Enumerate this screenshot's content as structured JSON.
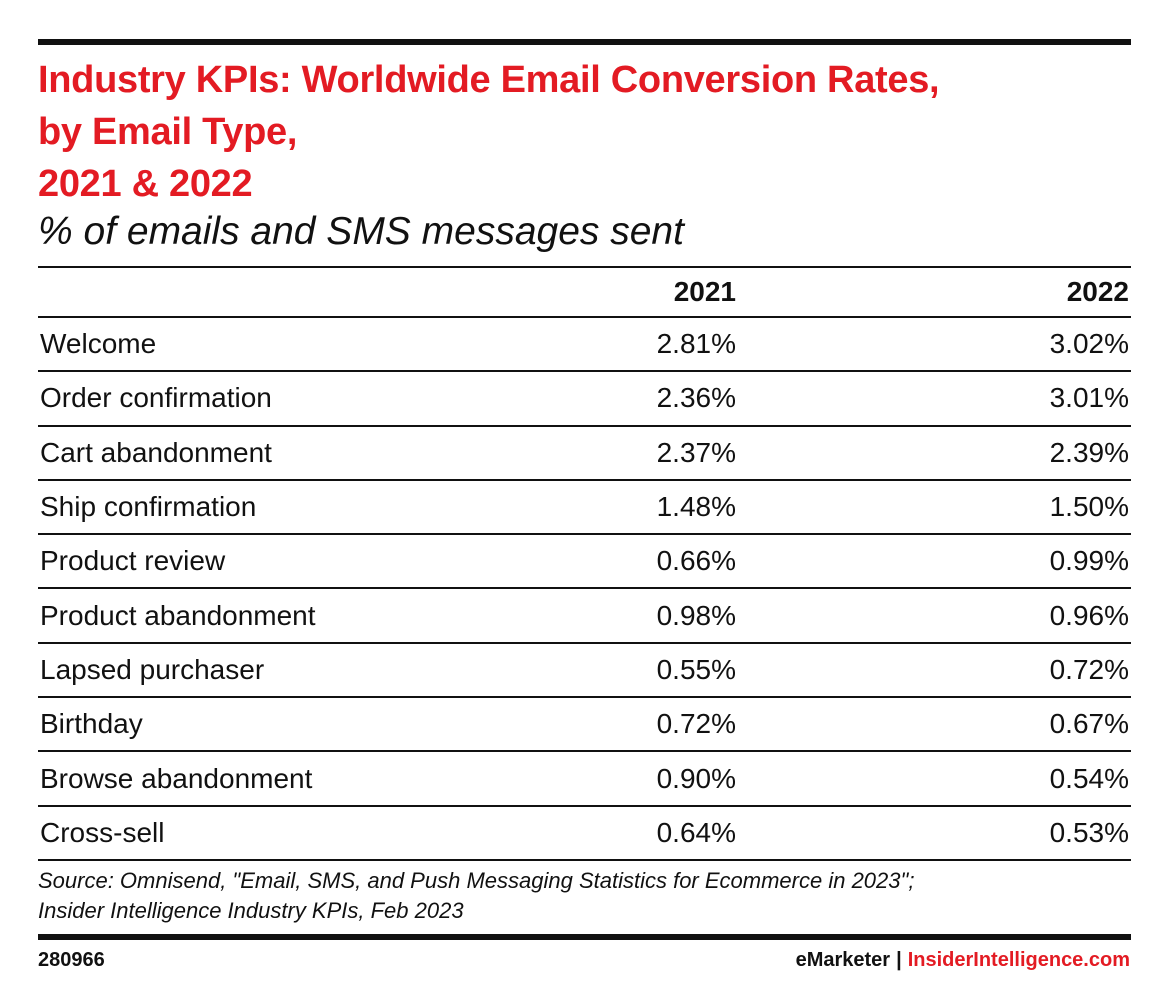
{
  "title_lines": [
    "Industry KPIs: Worldwide Email Conversion Rates,",
    "by Email Type,",
    "2021 & 2022"
  ],
  "subtitle": "% of emails and SMS messages sent",
  "colors": {
    "accent": "#e31b23",
    "text": "#111111",
    "background": "#ffffff"
  },
  "chart_data": {
    "type": "table",
    "title": "Industry KPIs: Worldwide Email Conversion Rates, by Email Type, 2021 & 2022",
    "subtitle": "% of emails and SMS messages sent",
    "columns": [
      "",
      "2021",
      "2022"
    ],
    "rows": [
      {
        "label": "Welcome",
        "v2021": "2.81%",
        "v2022": "3.02%"
      },
      {
        "label": "Order confirmation",
        "v2021": "2.36%",
        "v2022": "3.01%"
      },
      {
        "label": "Cart abandonment",
        "v2021": "2.37%",
        "v2022": "2.39%"
      },
      {
        "label": "Ship confirmation",
        "v2021": "1.48%",
        "v2022": "1.50%"
      },
      {
        "label": "Product review",
        "v2021": "0.66%",
        "v2022": "0.99%"
      },
      {
        "label": "Product abandonment",
        "v2021": "0.98%",
        "v2022": "0.96%"
      },
      {
        "label": "Lapsed purchaser",
        "v2021": "0.55%",
        "v2022": "0.72%"
      },
      {
        "label": "Birthday",
        "v2021": "0.72%",
        "v2022": "0.67%"
      },
      {
        "label": "Browse abandonment",
        "v2021": "0.90%",
        "v2022": "0.54%"
      },
      {
        "label": "Cross-sell",
        "v2021": "0.64%",
        "v2022": "0.53%"
      }
    ]
  },
  "source_lines": [
    "Source: Omnisend, \"Email, SMS, and Push Messaging Statistics for Ecommerce in 2023\";",
    "Insider Intelligence Industry KPIs, Feb 2023"
  ],
  "footer": {
    "chart_id": "280966",
    "brand_emarketer": "eMarketer",
    "brand_separator": "|",
    "brand_insider": "InsiderIntelligence.com"
  }
}
